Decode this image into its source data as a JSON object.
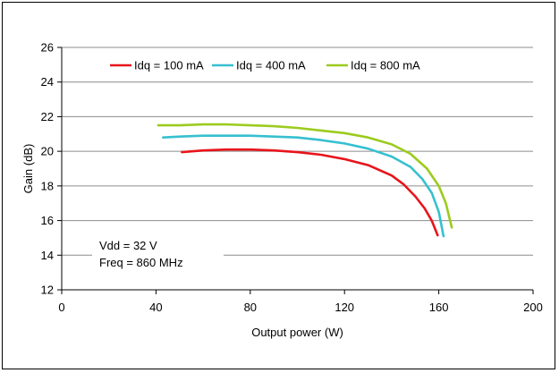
{
  "chart_data": {
    "type": "line",
    "title": "",
    "xlabel": "Output power (W)",
    "ylabel": "Gain (dB)",
    "xlim": [
      0,
      200
    ],
    "ylim": [
      12,
      26
    ],
    "xticks": [
      0,
      40,
      80,
      120,
      160,
      200
    ],
    "yticks": [
      12,
      14,
      16,
      18,
      20,
      22,
      24,
      26
    ],
    "grid": "horizontal",
    "legend_position": "top",
    "annotation": [
      "Vdd = 32 V",
      "Freq = 860 MHz"
    ],
    "series": [
      {
        "name": "Idq = 100 mA",
        "color": "#e8141b",
        "x": [
          51,
          60,
          70,
          80,
          90,
          100,
          110,
          120,
          130,
          140,
          145,
          150,
          154,
          157,
          159.5
        ],
        "y": [
          19.95,
          20.05,
          20.1,
          20.1,
          20.05,
          19.95,
          19.8,
          19.55,
          19.2,
          18.6,
          18.1,
          17.4,
          16.7,
          16.0,
          15.15
        ]
      },
      {
        "name": "Idq = 400 mA",
        "color": "#36c0d0",
        "x": [
          43,
          50,
          60,
          70,
          80,
          90,
          100,
          110,
          120,
          130,
          140,
          148,
          153,
          157,
          160,
          162
        ],
        "y": [
          20.8,
          20.85,
          20.9,
          20.9,
          20.9,
          20.85,
          20.8,
          20.65,
          20.45,
          20.15,
          19.7,
          19.1,
          18.4,
          17.6,
          16.5,
          15.1
        ]
      },
      {
        "name": "Idq = 800 mA",
        "color": "#9ccb1e",
        "x": [
          41,
          50,
          60,
          70,
          80,
          90,
          100,
          110,
          120,
          130,
          140,
          148,
          155,
          160,
          163,
          165.5
        ],
        "y": [
          21.5,
          21.5,
          21.55,
          21.55,
          21.5,
          21.45,
          21.35,
          21.2,
          21.05,
          20.8,
          20.4,
          19.85,
          19.0,
          18.0,
          17.0,
          15.6
        ]
      }
    ]
  }
}
